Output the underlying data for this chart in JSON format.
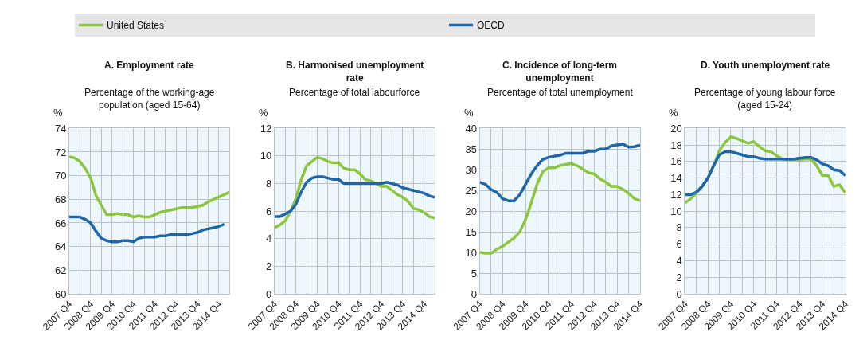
{
  "chart_data": [
    {
      "type": "line",
      "title": "A. Employment rate",
      "subtitle": "Percentage of the working-age population (aged 15-64)",
      "ylabel": "%",
      "legend": "top",
      "grid": true,
      "categories": [
        "2007 Q4",
        null,
        null,
        null,
        "2008 Q4",
        null,
        null,
        null,
        "2009 Q4",
        null,
        null,
        null,
        "2010 Q4",
        null,
        null,
        null,
        "2011 Q4",
        null,
        null,
        null,
        "2012 Q4",
        null,
        null,
        null,
        "2013 Q4",
        null,
        null,
        null,
        "2014 Q4",
        null,
        null
      ],
      "ylim": [
        60,
        74
      ],
      "yticks": [
        60,
        62,
        64,
        66,
        68,
        70,
        72,
        74
      ],
      "series": [
        {
          "name": "United States",
          "color": "#8cc63f",
          "values": [
            71.6,
            71.5,
            71.2,
            70.6,
            69.8,
            68.3,
            67.5,
            66.7,
            66.7,
            66.8,
            66.7,
            66.7,
            66.5,
            66.6,
            66.5,
            66.5,
            66.7,
            66.9,
            67.0,
            67.1,
            67.2,
            67.3,
            67.3,
            67.3,
            67.4,
            67.5,
            67.8,
            68.0,
            68.2,
            68.4,
            68.6
          ]
        },
        {
          "name": "OECD",
          "color": "#1f66a8",
          "values": [
            66.5,
            66.5,
            66.5,
            66.3,
            66.0,
            65.3,
            64.7,
            64.5,
            64.4,
            64.4,
            64.5,
            64.5,
            64.4,
            64.7,
            64.8,
            64.8,
            64.8,
            64.9,
            64.9,
            65.0,
            65.0,
            65.0,
            65.0,
            65.1,
            65.2,
            65.4,
            65.5,
            65.6,
            65.7,
            65.9,
            null
          ]
        }
      ]
    },
    {
      "type": "line",
      "title": "B. Harmonised unemployment rate",
      "subtitle": "Percentage of total labourforce",
      "ylabel": "%",
      "grid": true,
      "categories": [
        "2007 Q4",
        null,
        null,
        null,
        "2008 Q4",
        null,
        null,
        null,
        "2009 Q4",
        null,
        null,
        null,
        "2010 Q4",
        null,
        null,
        null,
        "2011 Q4",
        null,
        null,
        null,
        "2012 Q4",
        null,
        null,
        null,
        "2013 Q4",
        null,
        null,
        null,
        "2014 Q4",
        null,
        null
      ],
      "ylim": [
        0,
        12
      ],
      "yticks": [
        0,
        2,
        4,
        6,
        8,
        10,
        12
      ],
      "series": [
        {
          "color": "#8cc63f",
          "values": [
            4.8,
            5.0,
            5.3,
            6.0,
            6.9,
            8.3,
            9.3,
            9.6,
            9.9,
            9.8,
            9.6,
            9.5,
            9.5,
            9.1,
            9.0,
            9.0,
            8.7,
            8.3,
            8.2,
            8.0,
            7.8,
            7.8,
            7.5,
            7.2,
            7.0,
            6.7,
            6.2,
            6.1,
            5.9,
            5.6,
            5.5
          ]
        },
        {
          "color": "#1f66a8",
          "values": [
            5.6,
            5.6,
            5.8,
            6.0,
            6.5,
            7.4,
            8.1,
            8.4,
            8.5,
            8.5,
            8.4,
            8.3,
            8.3,
            8.0,
            8.0,
            8.0,
            8.0,
            8.0,
            8.0,
            8.0,
            8.0,
            8.1,
            8.0,
            7.9,
            7.7,
            7.6,
            7.5,
            7.4,
            7.3,
            7.1,
            7.0
          ]
        }
      ]
    },
    {
      "type": "line",
      "title": "C. Incidence of long-term unemployment",
      "subtitle": "Percentage of total unemployment",
      "ylabel": "%",
      "grid": true,
      "categories": [
        "2007 Q4",
        null,
        null,
        null,
        "2008 Q4",
        null,
        null,
        null,
        "2009 Q4",
        null,
        null,
        null,
        "2010 Q4",
        null,
        null,
        null,
        "2011 Q4",
        null,
        null,
        null,
        "2012 Q4",
        null,
        null,
        null,
        "2013 Q4",
        null,
        null,
        null,
        "2014 Q4"
      ],
      "ylim": [
        0,
        40
      ],
      "yticks": [
        0,
        5,
        10,
        15,
        20,
        25,
        30,
        35,
        40
      ],
      "series": [
        {
          "color": "#8cc63f",
          "values": [
            10,
            9.8,
            9.8,
            10.8,
            11.5,
            12.5,
            13.5,
            15,
            18,
            22,
            26.5,
            29.5,
            30.5,
            30.5,
            31,
            31.3,
            31.5,
            31,
            30.2,
            29.3,
            29,
            27.8,
            27,
            26,
            26,
            25.3,
            24.3,
            23,
            22.5
          ]
        },
        {
          "color": "#1f66a8",
          "values": [
            27,
            26.5,
            25.2,
            24.5,
            23,
            22.5,
            22.5,
            24,
            26.5,
            29,
            31,
            32.5,
            33,
            33.3,
            33.5,
            34,
            34,
            34,
            34,
            34.5,
            34.5,
            35,
            35,
            35.8,
            36,
            36.2,
            35.5,
            35.6,
            36
          ]
        }
      ]
    },
    {
      "type": "line",
      "title": "D. Youth unemployment rate",
      "subtitle": "Percentage of young labour force (aged 15-24)",
      "ylabel": "%",
      "grid": true,
      "categories": [
        "2007 Q4",
        null,
        null,
        null,
        "2008 Q4",
        null,
        null,
        null,
        "2009 Q4",
        null,
        null,
        null,
        "2010 Q4",
        null,
        null,
        null,
        "2011 Q4",
        null,
        null,
        null,
        "2012 Q4",
        null,
        null,
        null,
        "2013 Q4",
        null,
        null,
        null,
        "2014 Q4"
      ],
      "ylim": [
        0,
        20
      ],
      "yticks": [
        0,
        2,
        4,
        6,
        8,
        10,
        12,
        14,
        16,
        18,
        20
      ],
      "series": [
        {
          "color": "#8cc63f",
          "values": [
            11,
            11.5,
            12.2,
            13,
            14,
            15.5,
            17.3,
            18.3,
            19,
            18.8,
            18.5,
            18.2,
            18.4,
            17.8,
            17.3,
            17.2,
            16.7,
            16.3,
            16.2,
            16.2,
            16.2,
            16.3,
            16.3,
            15.5,
            14.3,
            14.3,
            13,
            13.2,
            12.2
          ]
        },
        {
          "color": "#1f66a8",
          "values": [
            12,
            12,
            12.3,
            13,
            14,
            15.5,
            16.8,
            17.2,
            17.2,
            17.0,
            16.8,
            16.6,
            16.6,
            16.4,
            16.3,
            16.3,
            16.3,
            16.3,
            16.3,
            16.3,
            16.4,
            16.5,
            16.5,
            16.2,
            15.7,
            15.5,
            15.0,
            14.9,
            14.3
          ]
        }
      ]
    }
  ]
}
